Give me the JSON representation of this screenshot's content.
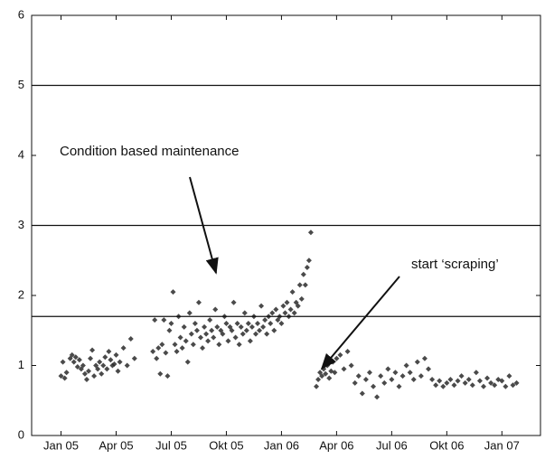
{
  "chart_data": {
    "type": "scatter",
    "color": "#2a2a2a",
    "xlim": [
      -1.6,
      26.1
    ],
    "ylim": [
      0,
      6
    ],
    "yticks": [
      0,
      1,
      2,
      3,
      4,
      5,
      6
    ],
    "xticks": [
      {
        "value": 0,
        "label": "Jan 05"
      },
      {
        "value": 3,
        "label": "Apr 05"
      },
      {
        "value": 6,
        "label": "Jul 05"
      },
      {
        "value": 9,
        "label": "Okt 05"
      },
      {
        "value": 12,
        "label": "Jan 06"
      },
      {
        "value": 15,
        "label": "Apr 06"
      },
      {
        "value": 18,
        "label": "Jul 06"
      },
      {
        "value": 21,
        "label": "Okt 06"
      },
      {
        "value": 24,
        "label": "Jan 07"
      }
    ],
    "hlines": [
      5,
      3,
      1.7
    ],
    "annotations": [
      "Condition based maintenance",
      "start ‘scraping’"
    ],
    "x": [
      0,
      0.1,
      0.2,
      0.3,
      0.5,
      0.6,
      0.7,
      0.8,
      0.9,
      1.0,
      1.1,
      1.2,
      1.3,
      1.4,
      1.5,
      1.6,
      1.7,
      1.8,
      1.9,
      2.0,
      2.1,
      2.2,
      2.3,
      2.4,
      2.5,
      2.6,
      2.7,
      2.8,
      2.9,
      3.0,
      3.1,
      3.2,
      3.4,
      3.6,
      3.8,
      4.0,
      5.0,
      5.1,
      5.2,
      5.3,
      5.4,
      5.5,
      5.6,
      5.7,
      5.8,
      5.9,
      6.0,
      6.1,
      6.2,
      6.3,
      6.4,
      6.5,
      6.6,
      6.7,
      6.8,
      6.9,
      7.0,
      7.1,
      7.2,
      7.3,
      7.4,
      7.5,
      7.6,
      7.7,
      7.8,
      7.9,
      8.0,
      8.1,
      8.2,
      8.3,
      8.4,
      8.5,
      8.6,
      8.7,
      8.8,
      8.9,
      9.0,
      9.1,
      9.2,
      9.3,
      9.4,
      9.5,
      9.6,
      9.7,
      9.8,
      9.9,
      10.0,
      10.1,
      10.2,
      10.3,
      10.4,
      10.5,
      10.6,
      10.7,
      10.8,
      10.9,
      11.0,
      11.1,
      11.2,
      11.3,
      11.4,
      11.5,
      11.6,
      11.7,
      11.8,
      11.9,
      12.0,
      12.1,
      12.2,
      12.3,
      12.4,
      12.5,
      12.6,
      12.7,
      12.8,
      12.9,
      13.0,
      13.1,
      13.2,
      13.3,
      13.4,
      13.5,
      13.6,
      13.9,
      14.0,
      14.1,
      14.2,
      14.3,
      14.4,
      14.5,
      14.6,
      14.7,
      14.8,
      14.9,
      15.0,
      15.2,
      15.4,
      15.6,
      15.8,
      16.0,
      16.2,
      16.4,
      16.6,
      16.8,
      17.0,
      17.2,
      17.4,
      17.6,
      17.8,
      18.0,
      18.2,
      18.4,
      18.6,
      18.8,
      19.0,
      19.2,
      19.4,
      19.6,
      19.8,
      20.0,
      20.2,
      20.4,
      20.6,
      20.8,
      21.0,
      21.2,
      21.4,
      21.6,
      21.8,
      22.0,
      22.2,
      22.4,
      22.6,
      22.8,
      23.0,
      23.2,
      23.4,
      23.6,
      23.8,
      24.0,
      24.2,
      24.4,
      24.6,
      24.8
    ],
    "values": [
      0.85,
      1.05,
      0.82,
      0.9,
      1.1,
      1.15,
      1.05,
      1.12,
      0.98,
      1.08,
      0.95,
      1.0,
      0.88,
      0.8,
      0.92,
      1.1,
      1.22,
      0.85,
      1.0,
      0.95,
      1.05,
      0.88,
      1.0,
      1.12,
      0.95,
      1.2,
      1.08,
      1.0,
      1.02,
      1.15,
      0.92,
      1.05,
      1.25,
      1.0,
      1.38,
      1.1,
      1.2,
      1.65,
      1.1,
      1.25,
      0.88,
      1.3,
      1.65,
      1.18,
      0.85,
      1.5,
      1.6,
      2.05,
      1.3,
      1.2,
      1.7,
      1.4,
      1.25,
      1.55,
      1.35,
      1.05,
      1.75,
      1.45,
      1.3,
      1.6,
      1.5,
      1.9,
      1.4,
      1.25,
      1.55,
      1.45,
      1.35,
      1.65,
      1.5,
      1.4,
      1.8,
      1.55,
      1.3,
      1.5,
      1.45,
      1.7,
      1.6,
      1.35,
      1.55,
      1.5,
      1.9,
      1.4,
      1.6,
      1.3,
      1.55,
      1.45,
      1.75,
      1.5,
      1.6,
      1.35,
      1.55,
      1.7,
      1.45,
      1.6,
      1.5,
      1.85,
      1.55,
      1.65,
      1.45,
      1.7,
      1.6,
      1.75,
      1.5,
      1.8,
      1.65,
      1.7,
      1.6,
      1.85,
      1.75,
      1.9,
      1.7,
      1.8,
      2.05,
      1.75,
      1.9,
      1.85,
      2.15,
      1.95,
      2.3,
      2.15,
      2.4,
      2.5,
      2.9,
      0.7,
      0.8,
      0.9,
      0.85,
      0.95,
      0.88,
      1.0,
      0.82,
      0.92,
      1.05,
      0.9,
      1.1,
      1.15,
      0.95,
      1.2,
      1.0,
      0.75,
      0.85,
      0.6,
      0.8,
      0.9,
      0.7,
      0.55,
      0.85,
      0.75,
      0.95,
      0.8,
      0.9,
      0.7,
      0.85,
      1.0,
      0.9,
      0.8,
      1.05,
      0.85,
      1.1,
      0.95,
      0.8,
      0.72,
      0.78,
      0.7,
      0.75,
      0.8,
      0.72,
      0.78,
      0.85,
      0.75,
      0.8,
      0.72,
      0.9,
      0.78,
      0.7,
      0.82,
      0.75,
      0.72,
      0.8,
      0.78,
      0.7,
      0.85,
      0.72,
      0.75
    ]
  }
}
